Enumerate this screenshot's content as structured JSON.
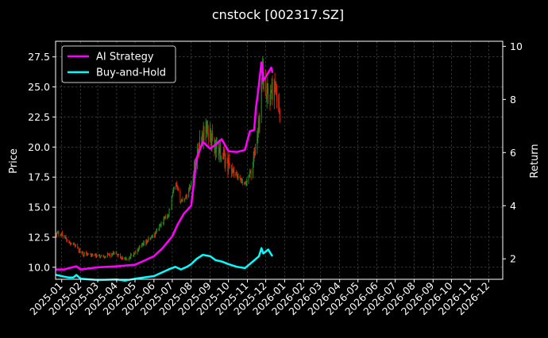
{
  "chart_data": {
    "type": "line",
    "title": "cnstock [002317.SZ]",
    "ylabel_left": "Price",
    "ylabel_right": "Return",
    "x_tick_labels": [
      "2025-01",
      "2025-02",
      "2025-03",
      "2025-04",
      "2025-05",
      "2025-06",
      "2025-07",
      "2025-08",
      "2025-09",
      "2025-10",
      "2025-11",
      "2025-12",
      "2026-01",
      "2026-02",
      "2026-03",
      "2026-04",
      "2026-05",
      "2026-06",
      "2026-07",
      "2026-08",
      "2026-09",
      "2026-10",
      "2026-11",
      "2026-12"
    ],
    "xlim": [
      "2024-12-22",
      "2026-12-24"
    ],
    "ylim_left": [
      9.0,
      28.8
    ],
    "ylim_right": [
      1.23,
      10.19
    ],
    "left_ticks": [
      10.0,
      12.5,
      15.0,
      17.5,
      20.0,
      22.5,
      25.0,
      27.5
    ],
    "left_tick_labels": [
      "10.0",
      "12.5",
      "15.0",
      "17.5",
      "20.0",
      "22.5",
      "25.0",
      "27.5"
    ],
    "right_ticks": [
      2,
      4,
      6,
      8,
      10
    ],
    "right_tick_labels": [
      "2",
      "4",
      "6",
      "8",
      "10"
    ],
    "grid": true,
    "legend_position": "upper-left",
    "colors": {
      "background": "#000000",
      "axis": "#ffffff",
      "grid": "#555555",
      "up_candle": "#228b22",
      "down_candle": "#dd2200",
      "ai_strategy": "#ff00ff",
      "buy_and_hold": "#00ffff"
    },
    "price_anchors": [
      {
        "date": "2024-12-22",
        "value": 12.8
      },
      {
        "date": "2025-01-01",
        "value": 12.8
      },
      {
        "date": "2025-01-12",
        "value": 12.1
      },
      {
        "date": "2025-01-20",
        "value": 12.0
      },
      {
        "date": "2025-02-01",
        "value": 11.2
      },
      {
        "date": "2025-03-01",
        "value": 10.9
      },
      {
        "date": "2025-04-01",
        "value": 11.1
      },
      {
        "date": "2025-04-15",
        "value": 10.6
      },
      {
        "date": "2025-05-01",
        "value": 11.2
      },
      {
        "date": "2025-06-01",
        "value": 12.7
      },
      {
        "date": "2025-06-25",
        "value": 14.5
      },
      {
        "date": "2025-07-06",
        "value": 17.0
      },
      {
        "date": "2025-07-15",
        "value": 15.5
      },
      {
        "date": "2025-07-25",
        "value": 16.0
      },
      {
        "date": "2025-08-01",
        "value": 17.0
      },
      {
        "date": "2025-08-15",
        "value": 20.5
      },
      {
        "date": "2025-08-25",
        "value": 21.5
      },
      {
        "date": "2025-09-01",
        "value": 21.0
      },
      {
        "date": "2025-09-10",
        "value": 20.0
      },
      {
        "date": "2025-09-20",
        "value": 19.5
      },
      {
        "date": "2025-10-01",
        "value": 18.5
      },
      {
        "date": "2025-10-15",
        "value": 17.5
      },
      {
        "date": "2025-10-28",
        "value": 16.8
      },
      {
        "date": "2025-11-10",
        "value": 18.5
      },
      {
        "date": "2025-11-20",
        "value": 22.0
      },
      {
        "date": "2025-11-26",
        "value": 26.5
      },
      {
        "date": "2025-12-05",
        "value": 24.0
      },
      {
        "date": "2025-12-15",
        "value": 25.0
      },
      {
        "date": "2025-12-24",
        "value": 22.8
      }
    ],
    "series": [
      {
        "name": "AI Strategy",
        "axis": "right",
        "points": [
          [
            "2024-12-22",
            1.6
          ],
          [
            "2025-01-05",
            1.6
          ],
          [
            "2025-01-25",
            1.72
          ],
          [
            "2025-02-01",
            1.6
          ],
          [
            "2025-03-01",
            1.68
          ],
          [
            "2025-04-01",
            1.72
          ],
          [
            "2025-05-01",
            1.78
          ],
          [
            "2025-05-15",
            1.92
          ],
          [
            "2025-06-01",
            2.1
          ],
          [
            "2025-06-15",
            2.4
          ],
          [
            "2025-07-01",
            2.85
          ],
          [
            "2025-07-10",
            3.3
          ],
          [
            "2025-07-20",
            3.7
          ],
          [
            "2025-08-01",
            4.0
          ],
          [
            "2025-08-10",
            5.8
          ],
          [
            "2025-08-20",
            6.4
          ],
          [
            "2025-09-01",
            6.15
          ],
          [
            "2025-09-10",
            6.3
          ],
          [
            "2025-09-20",
            6.5
          ],
          [
            "2025-10-01",
            6.05
          ],
          [
            "2025-10-15",
            6.02
          ],
          [
            "2025-10-28",
            6.1
          ],
          [
            "2025-11-05",
            6.8
          ],
          [
            "2025-11-12",
            6.85
          ],
          [
            "2025-11-15",
            7.7
          ],
          [
            "2025-11-18",
            8.2
          ],
          [
            "2025-11-24",
            9.4
          ],
          [
            "2025-11-27",
            8.7
          ],
          [
            "2025-12-05",
            9.0
          ],
          [
            "2025-12-10",
            9.2
          ],
          [
            "2025-12-12",
            9.0
          ]
        ]
      },
      {
        "name": "Buy-and-Hold",
        "axis": "right",
        "points": [
          [
            "2024-12-22",
            1.4
          ],
          [
            "2025-01-05",
            1.33
          ],
          [
            "2025-01-12",
            1.3
          ],
          [
            "2025-01-20",
            1.3
          ],
          [
            "2025-01-25",
            1.39
          ],
          [
            "2025-02-01",
            1.25
          ],
          [
            "2025-03-01",
            1.2
          ],
          [
            "2025-04-01",
            1.22
          ],
          [
            "2025-04-15",
            1.18
          ],
          [
            "2025-05-01",
            1.25
          ],
          [
            "2025-06-01",
            1.35
          ],
          [
            "2025-06-25",
            1.6
          ],
          [
            "2025-07-06",
            1.7
          ],
          [
            "2025-07-15",
            1.6
          ],
          [
            "2025-07-25",
            1.7
          ],
          [
            "2025-08-01",
            1.8
          ],
          [
            "2025-08-10",
            2.0
          ],
          [
            "2025-08-20",
            2.15
          ],
          [
            "2025-09-01",
            2.1
          ],
          [
            "2025-09-10",
            1.95
          ],
          [
            "2025-09-20",
            1.9
          ],
          [
            "2025-10-01",
            1.8
          ],
          [
            "2025-10-15",
            1.7
          ],
          [
            "2025-10-28",
            1.65
          ],
          [
            "2025-11-10",
            1.9
          ],
          [
            "2025-11-20",
            2.1
          ],
          [
            "2025-11-24",
            2.4
          ],
          [
            "2025-11-27",
            2.2
          ],
          [
            "2025-12-05",
            2.35
          ],
          [
            "2025-12-12",
            2.1
          ]
        ]
      }
    ]
  }
}
